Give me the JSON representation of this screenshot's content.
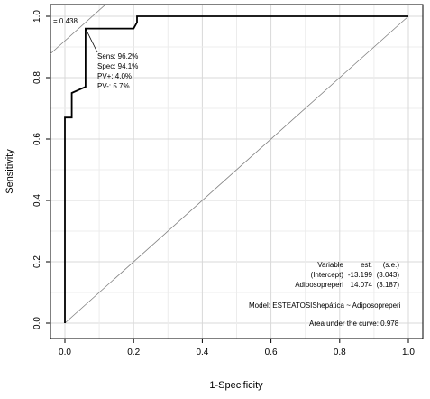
{
  "chart_data": {
    "type": "line",
    "xlabel": "1-Specificity",
    "ylabel": "Sensitivity",
    "xlim": [
      0,
      1
    ],
    "ylim": [
      0,
      1
    ],
    "grid": true,
    "x_ticks": [
      0.0,
      0.2,
      0.4,
      0.6,
      0.8,
      1.0
    ],
    "x_tick_labels": [
      "0.0",
      "0.2",
      "0.4",
      "0.6",
      "0.8",
      "1.0"
    ],
    "y_ticks": [
      0.0,
      0.2,
      0.4,
      0.6,
      0.8,
      1.0
    ],
    "y_tick_labels": [
      "0.0",
      "0.2",
      "0.4",
      "0.6",
      "0.8",
      "1.0"
    ],
    "series": [
      {
        "x": [
          0.0,
          0.0,
          0.0,
          0.0,
          0.02,
          0.02,
          0.06,
          0.06,
          0.06,
          0.2,
          0.21,
          0.21,
          0.34,
          0.6,
          1.0
        ],
        "y": [
          0.0,
          0.26,
          0.55,
          0.67,
          0.67,
          0.75,
          0.77,
          0.77,
          0.96,
          0.96,
          0.98,
          1.0,
          1.0,
          1.0,
          1.0
        ]
      }
    ],
    "reference_lines": [
      {
        "x": [
          0,
          1
        ],
        "y": [
          0,
          1
        ]
      },
      {
        "x": [
          -0.06,
          0.21
        ],
        "y": [
          0.86,
          1.13
        ]
      }
    ],
    "optimal_point": {
      "x": 0.06,
      "y": 0.96,
      "cut_label": "= 0.438",
      "sens": "Sens: 96.2%",
      "spec": "Spec: 94.1%",
      "pvpos": "PV+: 4.0%",
      "pvneg": "PV-: 5.7%"
    },
    "coef_table": {
      "header": [
        "Variable",
        "est.",
        "(s.e.)"
      ],
      "rows": [
        [
          "(Intercept)",
          "-13.199",
          "(3.043)"
        ],
        [
          "Adiposopreperi",
          "14.074",
          "(3.187)"
        ]
      ]
    },
    "model_text": "Model:  ESTEATOSIShepática ~ Adiposopreperi",
    "auc_text": "Area under the curve: 0.978"
  }
}
